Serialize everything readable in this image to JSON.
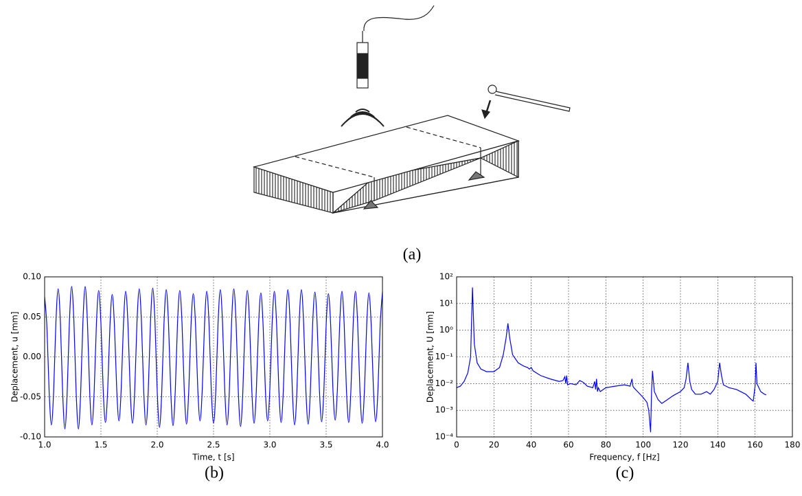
{
  "panel_labels": [
    "(a)",
    "(b)",
    "(c)"
  ],
  "chart_data": [
    {
      "type": "line",
      "xlabel": "Time, t [s]",
      "ylabel": "Deplacement, u [mm]",
      "color": "#0000ff",
      "grid": true,
      "xlim": [
        1.0,
        4.0
      ],
      "xticks": [
        {
          "value": 1.0,
          "label": "1.0"
        },
        1.5,
        {
          "value": 2.0,
          "label": "2.0"
        },
        2.5,
        {
          "value": 3.0,
          "label": "3.0"
        },
        3.5,
        {
          "value": 4.0,
          "label": "4.0"
        }
      ],
      "ylim": [
        -0.1,
        0.1
      ],
      "yticks": [
        {
          "value": -0.1,
          "label": "-0.10"
        },
        -0.05,
        {
          "value": 0,
          "label": "0.00"
        },
        0.05,
        {
          "value": 0.1,
          "label": "0.10"
        }
      ],
      "x": [
        1,
        1.02,
        1.04,
        1.06,
        1.08,
        1.1,
        1.12,
        1.14,
        1.16,
        1.18,
        1.2,
        1.22,
        1.24,
        1.26,
        1.28,
        1.3,
        1.32,
        1.34,
        1.36,
        1.38,
        1.4,
        1.42,
        1.44,
        1.46,
        1.48,
        1.5,
        1.52,
        1.54,
        1.56,
        1.58,
        1.6,
        1.62,
        1.64,
        1.66,
        1.68,
        1.7,
        1.72,
        1.74,
        1.76,
        1.78,
        1.8,
        1.82,
        1.84,
        1.86,
        1.88,
        1.9,
        1.92,
        1.94,
        1.96,
        1.98,
        2,
        2.02,
        2.04,
        2.06,
        2.08,
        2.1,
        2.12,
        2.14,
        2.16,
        2.18,
        2.2,
        2.22,
        2.24,
        2.26,
        2.28,
        2.3,
        2.32,
        2.34,
        2.36,
        2.38,
        2.4,
        2.42,
        2.44,
        2.46,
        2.48,
        2.5,
        2.52,
        2.54,
        2.56,
        2.58,
        2.6,
        2.62,
        2.64,
        2.66,
        2.68,
        2.7,
        2.72,
        2.74,
        2.76,
        2.78,
        2.8,
        2.82,
        2.84,
        2.86,
        2.88,
        2.9,
        2.92,
        2.94,
        2.96,
        2.98,
        3,
        3.02,
        3.04,
        3.06,
        3.08,
        3.1,
        3.12,
        3.14,
        3.16,
        3.18,
        3.2,
        3.22,
        3.24,
        3.26,
        3.28,
        3.3,
        3.32,
        3.34,
        3.36,
        3.38,
        3.4,
        3.42,
        3.44,
        3.46,
        3.48,
        3.5,
        3.52,
        3.54,
        3.56,
        3.58,
        3.6,
        3.62,
        3.64,
        3.66,
        3.68,
        3.7,
        3.72,
        3.74,
        3.76,
        3.78,
        3.8,
        3.82,
        3.84,
        3.86,
        3.88,
        3.9,
        3.92,
        3.94,
        3.96,
        3.98,
        4
      ],
      "values": [
        0.075,
        0.038,
        -0.043,
        -0.085,
        -0.043,
        0.043,
        0.085,
        0.043,
        -0.045,
        -0.09,
        -0.045,
        0.044,
        0.088,
        0.044,
        -0.045,
        -0.09,
        -0.045,
        0.044,
        0.088,
        0.044,
        -0.043,
        -0.085,
        -0.043,
        0.042,
        0.083,
        0.042,
        -0.041,
        -0.082,
        -0.041,
        0.039,
        0.078,
        0.039,
        -0.04,
        -0.08,
        -0.04,
        0.041,
        0.082,
        0.041,
        -0.042,
        -0.083,
        -0.042,
        0.043,
        0.085,
        0.043,
        -0.043,
        -0.085,
        -0.043,
        0.043,
        0.086,
        0.043,
        -0.044,
        -0.088,
        -0.044,
        0.042,
        0.084,
        0.042,
        -0.043,
        -0.086,
        -0.043,
        0.042,
        0.083,
        0.042,
        -0.042,
        -0.084,
        -0.042,
        0.04,
        0.079,
        0.04,
        -0.04,
        -0.08,
        -0.04,
        0.041,
        0.082,
        0.041,
        -0.042,
        -0.083,
        -0.042,
        0.042,
        0.084,
        0.042,
        -0.043,
        -0.085,
        -0.043,
        0.043,
        0.085,
        0.043,
        -0.044,
        -0.087,
        -0.044,
        0.042,
        0.083,
        0.042,
        -0.042,
        -0.083,
        -0.042,
        0.04,
        0.08,
        0.04,
        -0.04,
        -0.08,
        -0.04,
        0.041,
        0.082,
        0.041,
        -0.041,
        -0.082,
        -0.041,
        0.042,
        0.084,
        0.042,
        -0.043,
        -0.085,
        -0.043,
        0.042,
        0.084,
        0.042,
        -0.042,
        -0.084,
        -0.042,
        0.041,
        0.081,
        0.041,
        -0.041,
        -0.081,
        -0.041,
        0.04,
        0.079,
        0.04,
        -0.04,
        -0.079,
        -0.04,
        0.041,
        0.082,
        0.041,
        -0.041,
        -0.082,
        -0.041,
        0.041,
        0.082,
        0.041,
        -0.042,
        -0.083,
        -0.042,
        0.04,
        0.08,
        0.04,
        -0.041,
        -0.081,
        -0.041,
        0.041,
        0.081
      ]
    },
    {
      "type": "line",
      "xlabel": "Frequency, f [Hz]",
      "ylabel": "Deplacement, U [mm]",
      "color": "#0000ff",
      "grid": true,
      "yscale": "log",
      "xlim": [
        0,
        180
      ],
      "xticks": [
        0,
        20,
        40,
        60,
        80,
        100,
        120,
        140,
        160,
        180
      ],
      "ylim": [
        0.0001,
        100
      ],
      "yticks": [
        {
          "value": 0.0001,
          "label": "10⁻⁴"
        },
        {
          "value": 0.001,
          "label": "10⁻³"
        },
        {
          "value": 0.01,
          "label": "10⁻²"
        },
        {
          "value": 0.1,
          "label": "10⁻¹"
        },
        {
          "value": 1,
          "label": "10⁰"
        },
        {
          "value": 10,
          "label": "10¹"
        },
        {
          "value": 100,
          "label": "10²"
        }
      ],
      "x": [
        0,
        2,
        4,
        6,
        7.5,
        8.5,
        9.5,
        11,
        13,
        16,
        20,
        23,
        25,
        26.5,
        27.5,
        28.5,
        30,
        33,
        36,
        38,
        39,
        40,
        41,
        45,
        50,
        55,
        57,
        58,
        58.5,
        59,
        59.5,
        61,
        64,
        66,
        68,
        70,
        73,
        74,
        74.5,
        75,
        75.5,
        76,
        77,
        80,
        85,
        90,
        93,
        94,
        94.5,
        95,
        97,
        100,
        102,
        103,
        104,
        104.5,
        105,
        106,
        108,
        110,
        113,
        116,
        120,
        122,
        123,
        124,
        125,
        126,
        128,
        131,
        134,
        136,
        138,
        140,
        141,
        142,
        143,
        146,
        150,
        155,
        158,
        159,
        160,
        160.5,
        161,
        163,
        165,
        166
      ],
      "values": [
        0.007,
        0.008,
        0.012,
        0.025,
        0.1,
        40,
        0.3,
        0.06,
        0.035,
        0.028,
        0.028,
        0.04,
        0.12,
        0.5,
        1.8,
        0.5,
        0.12,
        0.06,
        0.045,
        0.04,
        0.035,
        0.04,
        0.03,
        0.02,
        0.015,
        0.012,
        0.013,
        0.018,
        0.01,
        0.02,
        0.009,
        0.01,
        0.009,
        0.013,
        0.011,
        0.008,
        0.007,
        0.012,
        0.006,
        0.015,
        0.005,
        0.007,
        0.005,
        0.007,
        0.008,
        0.009,
        0.008,
        0.015,
        0.008,
        0.007,
        0.005,
        0.003,
        0.002,
        0.001,
        0.00015,
        0.005,
        0.03,
        0.005,
        0.0025,
        0.0018,
        0.0025,
        0.0035,
        0.005,
        0.007,
        0.015,
        0.06,
        0.012,
        0.006,
        0.004,
        0.004,
        0.005,
        0.004,
        0.006,
        0.012,
        0.06,
        0.02,
        0.009,
        0.007,
        0.006,
        0.004,
        0.0025,
        0.0022,
        0.008,
        0.06,
        0.01,
        0.005,
        0.004,
        0.0038
      ]
    }
  ]
}
